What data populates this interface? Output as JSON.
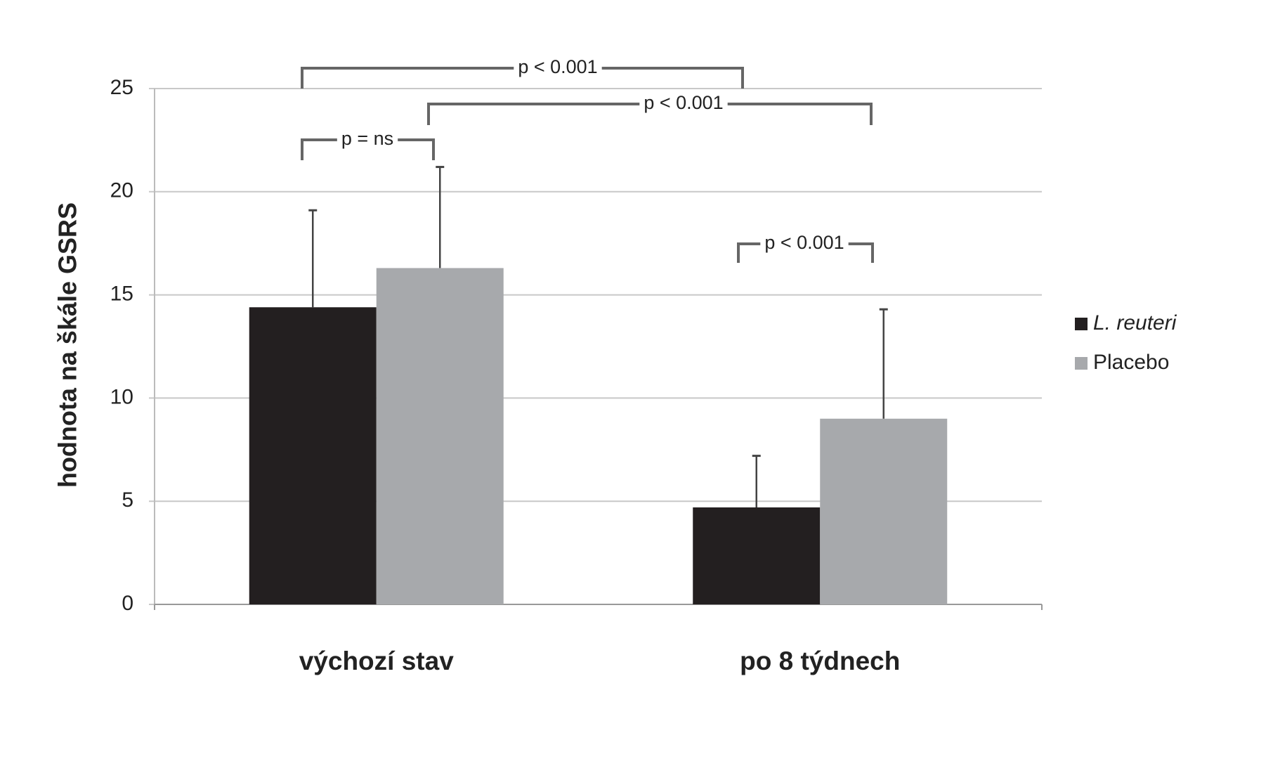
{
  "chart_data": {
    "type": "bar",
    "y_label": "hodnota na škále GSRS",
    "categories": [
      "výchozí stav",
      "po 8 týdnech"
    ],
    "series": [
      {
        "name": "L. reuteri",
        "color": "#231f20",
        "values": [
          14.4,
          4.7
        ],
        "errors": [
          4.7,
          2.5
        ]
      },
      {
        "name": "Placebo",
        "color": "#a7a9ac",
        "values": [
          16.3,
          9.0
        ],
        "errors": [
          4.9,
          5.3
        ]
      }
    ],
    "annotations": [
      "p < 0.001",
      "p < 0.001",
      "p = ns",
      "p < 0.001"
    ],
    "ylim": [
      0,
      25
    ],
    "yticks": [
      0,
      5,
      10,
      15,
      20,
      25
    ],
    "grid": true,
    "legend": "right"
  }
}
